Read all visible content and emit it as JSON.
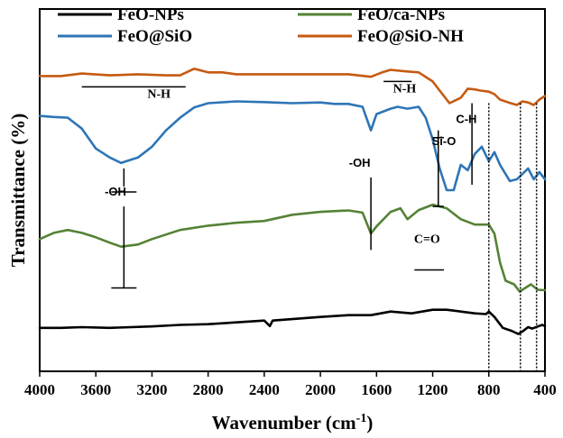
{
  "chart_data": {
    "type": "line",
    "xlabel": "Wavenumber (cm",
    "xlabel_sup": "-1",
    "xlabel_end": ")",
    "ylabel": "Transmittance (%)",
    "xlim": [
      4000,
      400
    ],
    "x_reversed": true,
    "x_ticks": [
      "4000",
      "3600",
      "3200",
      "2800",
      "2400",
      "2000",
      "1600",
      "1200",
      "800",
      "400"
    ],
    "grid": false,
    "legend_position": "top",
    "series": [
      {
        "name": "FeO-NPs",
        "color": "#000000",
        "points": [
          [
            4000,
            0.88
          ],
          [
            3850,
            0.88
          ],
          [
            3700,
            0.878
          ],
          [
            3500,
            0.88
          ],
          [
            3200,
            0.876
          ],
          [
            3000,
            0.872
          ],
          [
            2800,
            0.87
          ],
          [
            2600,
            0.865
          ],
          [
            2400,
            0.86
          ],
          [
            2360,
            0.875
          ],
          [
            2340,
            0.86
          ],
          [
            2000,
            0.85
          ],
          [
            1800,
            0.845
          ],
          [
            1640,
            0.845
          ],
          [
            1500,
            0.835
          ],
          [
            1350,
            0.84
          ],
          [
            1200,
            0.83
          ],
          [
            1100,
            0.83
          ],
          [
            1000,
            0.835
          ],
          [
            900,
            0.84
          ],
          [
            820,
            0.842
          ],
          [
            800,
            0.835
          ],
          [
            760,
            0.85
          ],
          [
            700,
            0.88
          ],
          [
            640,
            0.888
          ],
          [
            590,
            0.897
          ],
          [
            560,
            0.89
          ],
          [
            520,
            0.878
          ],
          [
            490,
            0.882
          ],
          [
            450,
            0.876
          ],
          [
            420,
            0.872
          ],
          [
            400,
            0.875
          ]
        ]
      },
      {
        "name": "FeO/ca-NPs",
        "color": "#548235",
        "points": [
          [
            4000,
            0.635
          ],
          [
            3900,
            0.618
          ],
          [
            3800,
            0.61
          ],
          [
            3700,
            0.618
          ],
          [
            3600,
            0.63
          ],
          [
            3500,
            0.645
          ],
          [
            3420,
            0.656
          ],
          [
            3300,
            0.65
          ],
          [
            3200,
            0.635
          ],
          [
            3000,
            0.61
          ],
          [
            2800,
            0.598
          ],
          [
            2600,
            0.59
          ],
          [
            2400,
            0.585
          ],
          [
            2200,
            0.568
          ],
          [
            2000,
            0.56
          ],
          [
            1800,
            0.556
          ],
          [
            1700,
            0.562
          ],
          [
            1640,
            0.62
          ],
          [
            1600,
            0.6
          ],
          [
            1500,
            0.56
          ],
          [
            1430,
            0.55
          ],
          [
            1380,
            0.58
          ],
          [
            1300,
            0.555
          ],
          [
            1200,
            0.54
          ],
          [
            1100,
            0.55
          ],
          [
            1000,
            0.58
          ],
          [
            900,
            0.595
          ],
          [
            800,
            0.595
          ],
          [
            760,
            0.62
          ],
          [
            720,
            0.7
          ],
          [
            680,
            0.75
          ],
          [
            620,
            0.76
          ],
          [
            580,
            0.78
          ],
          [
            540,
            0.77
          ],
          [
            500,
            0.76
          ],
          [
            450,
            0.775
          ],
          [
            400,
            0.776
          ]
        ]
      },
      {
        "name": "FeO@SiO",
        "color": "#2e75b6",
        "points": [
          [
            4000,
            0.295
          ],
          [
            3900,
            0.298
          ],
          [
            3800,
            0.3
          ],
          [
            3700,
            0.33
          ],
          [
            3600,
            0.385
          ],
          [
            3500,
            0.41
          ],
          [
            3420,
            0.425
          ],
          [
            3300,
            0.41
          ],
          [
            3200,
            0.38
          ],
          [
            3100,
            0.335
          ],
          [
            3000,
            0.3
          ],
          [
            2900,
            0.272
          ],
          [
            2800,
            0.26
          ],
          [
            2600,
            0.255
          ],
          [
            2400,
            0.257
          ],
          [
            2200,
            0.26
          ],
          [
            2000,
            0.258
          ],
          [
            1900,
            0.262
          ],
          [
            1800,
            0.262
          ],
          [
            1700,
            0.27
          ],
          [
            1640,
            0.335
          ],
          [
            1600,
            0.29
          ],
          [
            1500,
            0.275
          ],
          [
            1450,
            0.27
          ],
          [
            1380,
            0.275
          ],
          [
            1300,
            0.27
          ],
          [
            1250,
            0.3
          ],
          [
            1200,
            0.36
          ],
          [
            1150,
            0.44
          ],
          [
            1100,
            0.5
          ],
          [
            1050,
            0.5
          ],
          [
            1000,
            0.43
          ],
          [
            950,
            0.445
          ],
          [
            900,
            0.4
          ],
          [
            850,
            0.38
          ],
          [
            800,
            0.42
          ],
          [
            760,
            0.395
          ],
          [
            720,
            0.43
          ],
          [
            650,
            0.475
          ],
          [
            600,
            0.47
          ],
          [
            560,
            0.455
          ],
          [
            520,
            0.44
          ],
          [
            480,
            0.47
          ],
          [
            440,
            0.45
          ],
          [
            400,
            0.47
          ]
        ]
      },
      {
        "name": "FeO@SiO-NH",
        "color": "#c55a11",
        "points": [
          [
            4000,
            0.185
          ],
          [
            3850,
            0.185
          ],
          [
            3700,
            0.178
          ],
          [
            3500,
            0.183
          ],
          [
            3300,
            0.18
          ],
          [
            3100,
            0.183
          ],
          [
            3000,
            0.183
          ],
          [
            2900,
            0.165
          ],
          [
            2800,
            0.175
          ],
          [
            2700,
            0.175
          ],
          [
            2600,
            0.18
          ],
          [
            2400,
            0.18
          ],
          [
            2200,
            0.18
          ],
          [
            2000,
            0.18
          ],
          [
            1800,
            0.18
          ],
          [
            1640,
            0.187
          ],
          [
            1560,
            0.175
          ],
          [
            1500,
            0.168
          ],
          [
            1400,
            0.172
          ],
          [
            1300,
            0.175
          ],
          [
            1200,
            0.2
          ],
          [
            1150,
            0.225
          ],
          [
            1080,
            0.26
          ],
          [
            1000,
            0.245
          ],
          [
            950,
            0.22
          ],
          [
            900,
            0.222
          ],
          [
            860,
            0.225
          ],
          [
            800,
            0.228
          ],
          [
            760,
            0.235
          ],
          [
            720,
            0.25
          ],
          [
            660,
            0.258
          ],
          [
            600,
            0.265
          ],
          [
            560,
            0.255
          ],
          [
            520,
            0.258
          ],
          [
            480,
            0.265
          ],
          [
            440,
            0.25
          ],
          [
            400,
            0.24
          ]
        ]
      }
    ],
    "annotations": [
      {
        "text": "N-H",
        "x": 3150,
        "y": 0.245,
        "bracket": [
          3700,
          2960
        ],
        "bracket_y": 0.215
      },
      {
        "text": "N-H",
        "x": 1400,
        "y": 0.23,
        "bracket": [
          1550,
          1350
        ],
        "bracket_y": 0.2
      },
      {
        "text": "-OH",
        "x": 3460,
        "y": 0.515
      },
      {
        "text": "-OH",
        "x": 1720,
        "y": 0.435
      },
      {
        "text": "Si-O",
        "x": 1120,
        "y": 0.375
      },
      {
        "text": "C-H",
        "x": 960,
        "y": 0.315
      },
      {
        "text": "C=O",
        "x": 1240,
        "y": 0.645
      }
    ],
    "dotted_lines_x": [
      800,
      575,
      460
    ]
  }
}
